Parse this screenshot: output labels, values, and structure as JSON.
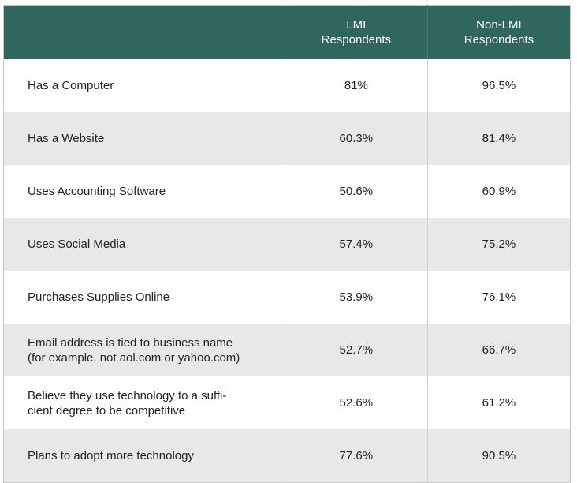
{
  "header": {
    "col0": "",
    "col1_line1": "LMI",
    "col1_line2": "Respondents",
    "col2_line1": "Non-LMI",
    "col2_line2": "Respondents"
  },
  "colors": {
    "header": "#2f675f",
    "stripe": "#e8e8e8"
  },
  "rows": [
    {
      "label": [
        "Has a Computer"
      ],
      "lmi": "81%",
      "non_lmi": "96.5%"
    },
    {
      "label": [
        "Has a Website"
      ],
      "lmi": "60.3%",
      "non_lmi": "81.4%"
    },
    {
      "label": [
        "Uses Accounting Software"
      ],
      "lmi": "50.6%",
      "non_lmi": "60.9%"
    },
    {
      "label": [
        "Uses Social Media"
      ],
      "lmi": "57.4%",
      "non_lmi": "75.2%"
    },
    {
      "label": [
        "Purchases Supplies Online"
      ],
      "lmi": "53.9%",
      "non_lmi": "76.1%"
    },
    {
      "label": [
        "Email address is tied to business name",
        "(for example, not aol.com or yahoo.com)"
      ],
      "lmi": "52.7%",
      "non_lmi": "66.7%"
    },
    {
      "label": [
        "Believe they use technology to a suffi-",
        "cient degree to be competitive"
      ],
      "lmi": "52.6%",
      "non_lmi": "61.2%"
    },
    {
      "label": [
        "Plans to adopt more technology"
      ],
      "lmi": "77.6%",
      "non_lmi": "90.5%"
    }
  ]
}
